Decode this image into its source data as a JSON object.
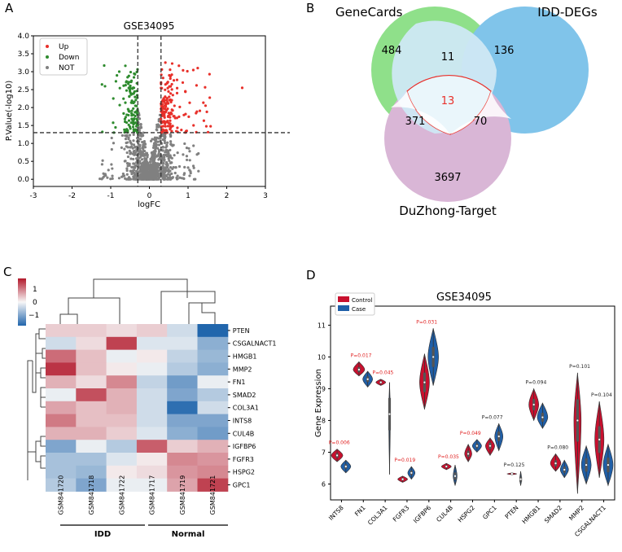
{
  "panel_labels": [
    "A",
    "B",
    "C",
    "D"
  ],
  "colors": {
    "up": "#e8302a",
    "down": "#2e8b2e",
    "not": "#808080",
    "genecards": "#8fe08a",
    "idd": "#80c4ea",
    "duzhong": "#d9b6d6",
    "core": "#cfe8f4",
    "heat_high": "#b2182b",
    "heat_mid": "#f7f7f7",
    "heat_low": "#2166ac",
    "control": "#c8102e",
    "case": "#1f5fa8",
    "sig": "#e02020",
    "nonsig": "#222222"
  },
  "chart_data": [
    {
      "type": "scatter",
      "title": "GSE34095",
      "xlabel": "logFC",
      "ylabel": "P.Value(-log10)",
      "xlim": [
        -3,
        3
      ],
      "ylim": [
        -0.2,
        4.0
      ],
      "xticks": [
        "-3",
        "-2",
        "-1",
        "0",
        "1",
        "2",
        "3"
      ],
      "yticks": [
        "0.0",
        "0.5",
        "1.0",
        "1.5",
        "2.0",
        "2.5",
        "3.0",
        "3.5",
        "4.0"
      ],
      "thresholds": {
        "x": [
          -0.3,
          0.3
        ],
        "y": 1.3
      },
      "legend": [
        {
          "key": "up",
          "label": "Up"
        },
        {
          "key": "down",
          "label": "Down"
        },
        {
          "key": "not",
          "label": "NOT"
        }
      ]
    },
    {
      "type": "venn",
      "sets": [
        "GeneCards",
        "IDD-DEGs",
        "DuZhong-Target"
      ],
      "regions": {
        "genecards_only": "484",
        "idd_only": "136",
        "duzhong_only": "3697",
        "genecards_idd": "11",
        "genecards_duzhong": "371",
        "idd_duzhong": "70",
        "all_three": "13"
      }
    },
    {
      "type": "heatmap",
      "colorbar_ticks": [
        "1",
        "0",
        "−1"
      ],
      "rows": [
        "PTEN",
        "CSGALNACT1",
        "HMGB1",
        "MMP2",
        "FN1",
        "SMAD2",
        "COL3A1",
        "INTS8",
        "CUL4B",
        "IGFBP6",
        "FGFR3",
        "HSPG2",
        "GPC1"
      ],
      "columns": [
        "GSM841720",
        "GSM841718",
        "GSM841722",
        "GSM841717",
        "GSM841719",
        "GSM841721"
      ],
      "groups": [
        {
          "label": "IDD",
          "span": [
            0,
            2
          ]
        },
        {
          "label": "Normal",
          "span": [
            3,
            5
          ]
        }
      ],
      "values": [
        [
          0.3,
          0.3,
          0.2,
          0.3,
          -0.3,
          -1.6
        ],
        [
          -0.3,
          0.2,
          1.3,
          -0.2,
          -0.2,
          -0.8
        ],
        [
          1.0,
          0.4,
          -0.1,
          0.1,
          -0.4,
          -0.7
        ],
        [
          1.4,
          0.4,
          0.1,
          -0.1,
          -0.5,
          -0.8
        ],
        [
          0.5,
          0.2,
          0.8,
          -0.4,
          -1.0,
          -0.1
        ],
        [
          -0.1,
          1.2,
          0.5,
          -0.3,
          -0.9,
          -0.5
        ],
        [
          0.6,
          0.4,
          0.5,
          -0.3,
          -1.5,
          -0.3
        ],
        [
          0.9,
          0.4,
          0.4,
          -0.3,
          -0.9,
          -0.9
        ],
        [
          0.5,
          0.5,
          0.3,
          -0.2,
          -0.8,
          -1.0
        ],
        [
          -0.9,
          -0.1,
          -0.5,
          1.1,
          0.3,
          0.5
        ],
        [
          -0.6,
          -0.6,
          -0.2,
          0.1,
          0.8,
          0.7
        ],
        [
          -0.6,
          -0.7,
          0.1,
          0.2,
          0.7,
          0.8
        ],
        [
          -0.5,
          -0.9,
          -0.1,
          -0.1,
          0.6,
          1.3
        ]
      ]
    },
    {
      "type": "violin",
      "title": "GSE34095",
      "ylabel": "Gene Expression",
      "ylim": [
        5.5,
        11.6
      ],
      "yticks": [
        "6",
        "7",
        "8",
        "9",
        "10",
        "11"
      ],
      "legend": [
        "Control",
        "Case"
      ],
      "genes": [
        {
          "name": "INTS8",
          "p": "P=0.006",
          "sig": true,
          "control": {
            "center": 6.9,
            "lo": 6.7,
            "hi": 7.1,
            "width": 0.35
          },
          "case": {
            "center": 6.55,
            "lo": 6.35,
            "hi": 6.75,
            "width": 0.3
          }
        },
        {
          "name": "FN1",
          "p": "P=0.017",
          "sig": true,
          "control": {
            "center": 9.6,
            "lo": 9.4,
            "hi": 9.85,
            "width": 0.35
          },
          "case": {
            "center": 9.3,
            "lo": 9.05,
            "hi": 9.55,
            "width": 0.3
          }
        },
        {
          "name": "COL3A1",
          "p": "P=0.045",
          "sig": true,
          "control": {
            "center": 9.2,
            "lo": 9.1,
            "hi": 9.3,
            "width": 0.3
          },
          "case": {
            "center": 8.2,
            "lo": 6.3,
            "hi": 9.2,
            "width": 0.05
          }
        },
        {
          "name": "FGFR3",
          "p": "P=0.019",
          "sig": true,
          "control": {
            "center": 6.15,
            "lo": 6.05,
            "hi": 6.25,
            "width": 0.3
          },
          "case": {
            "center": 6.35,
            "lo": 6.15,
            "hi": 6.55,
            "width": 0.22
          }
        },
        {
          "name": "IGFBP6",
          "p": "P=0.031",
          "sig": true,
          "control": {
            "center": 9.2,
            "lo": 8.35,
            "hi": 10.1,
            "width": 0.3
          },
          "case": {
            "center": 10.0,
            "lo": 9.1,
            "hi": 10.9,
            "width": 0.32
          }
        },
        {
          "name": "CUL4B",
          "p": "P=0.035",
          "sig": true,
          "control": {
            "center": 6.55,
            "lo": 6.45,
            "hi": 6.65,
            "width": 0.3
          },
          "case": {
            "center": 6.25,
            "lo": 5.95,
            "hi": 6.6,
            "width": 0.12
          }
        },
        {
          "name": "HSPG2",
          "p": "P=0.049",
          "sig": true,
          "control": {
            "center": 6.95,
            "lo": 6.7,
            "hi": 7.25,
            "width": 0.22
          },
          "case": {
            "center": 7.2,
            "lo": 7.0,
            "hi": 7.4,
            "width": 0.28
          }
        },
        {
          "name": "GPC1",
          "p": "P=0.077",
          "sig": false,
          "control": {
            "center": 7.2,
            "lo": 6.9,
            "hi": 7.45,
            "width": 0.28
          },
          "case": {
            "center": 7.5,
            "lo": 7.05,
            "hi": 7.9,
            "width": 0.25
          }
        },
        {
          "name": "PTEN",
          "p": "P=0.125",
          "sig": false,
          "control": {
            "center": 6.32,
            "lo": 6.29,
            "hi": 6.35,
            "width": 0.3
          },
          "case": {
            "center": 6.15,
            "lo": 5.95,
            "hi": 6.4,
            "width": 0.06
          }
        },
        {
          "name": "HMGB1",
          "p": "P=0.094",
          "sig": false,
          "control": {
            "center": 8.5,
            "lo": 8.0,
            "hi": 9.0,
            "width": 0.3
          },
          "case": {
            "center": 8.1,
            "lo": 7.75,
            "hi": 8.55,
            "width": 0.32
          }
        },
        {
          "name": "SMAD2",
          "p": "P=0.080",
          "sig": false,
          "control": {
            "center": 6.65,
            "lo": 6.4,
            "hi": 6.95,
            "width": 0.32
          },
          "case": {
            "center": 6.45,
            "lo": 6.2,
            "hi": 6.75,
            "width": 0.25
          }
        },
        {
          "name": "MMP2",
          "p": "P=0.101",
          "sig": false,
          "control": {
            "center": 8.0,
            "lo": 5.7,
            "hi": 9.5,
            "width": 0.22
          },
          "case": {
            "center": 6.6,
            "lo": 6.0,
            "hi": 7.2,
            "width": 0.3
          }
        },
        {
          "name": "CSGALNACT1",
          "p": "P=0.104",
          "sig": false,
          "control": {
            "center": 7.4,
            "lo": 6.2,
            "hi": 8.6,
            "width": 0.28
          },
          "case": {
            "center": 6.6,
            "lo": 5.95,
            "hi": 7.25,
            "width": 0.3
          }
        }
      ]
    }
  ]
}
